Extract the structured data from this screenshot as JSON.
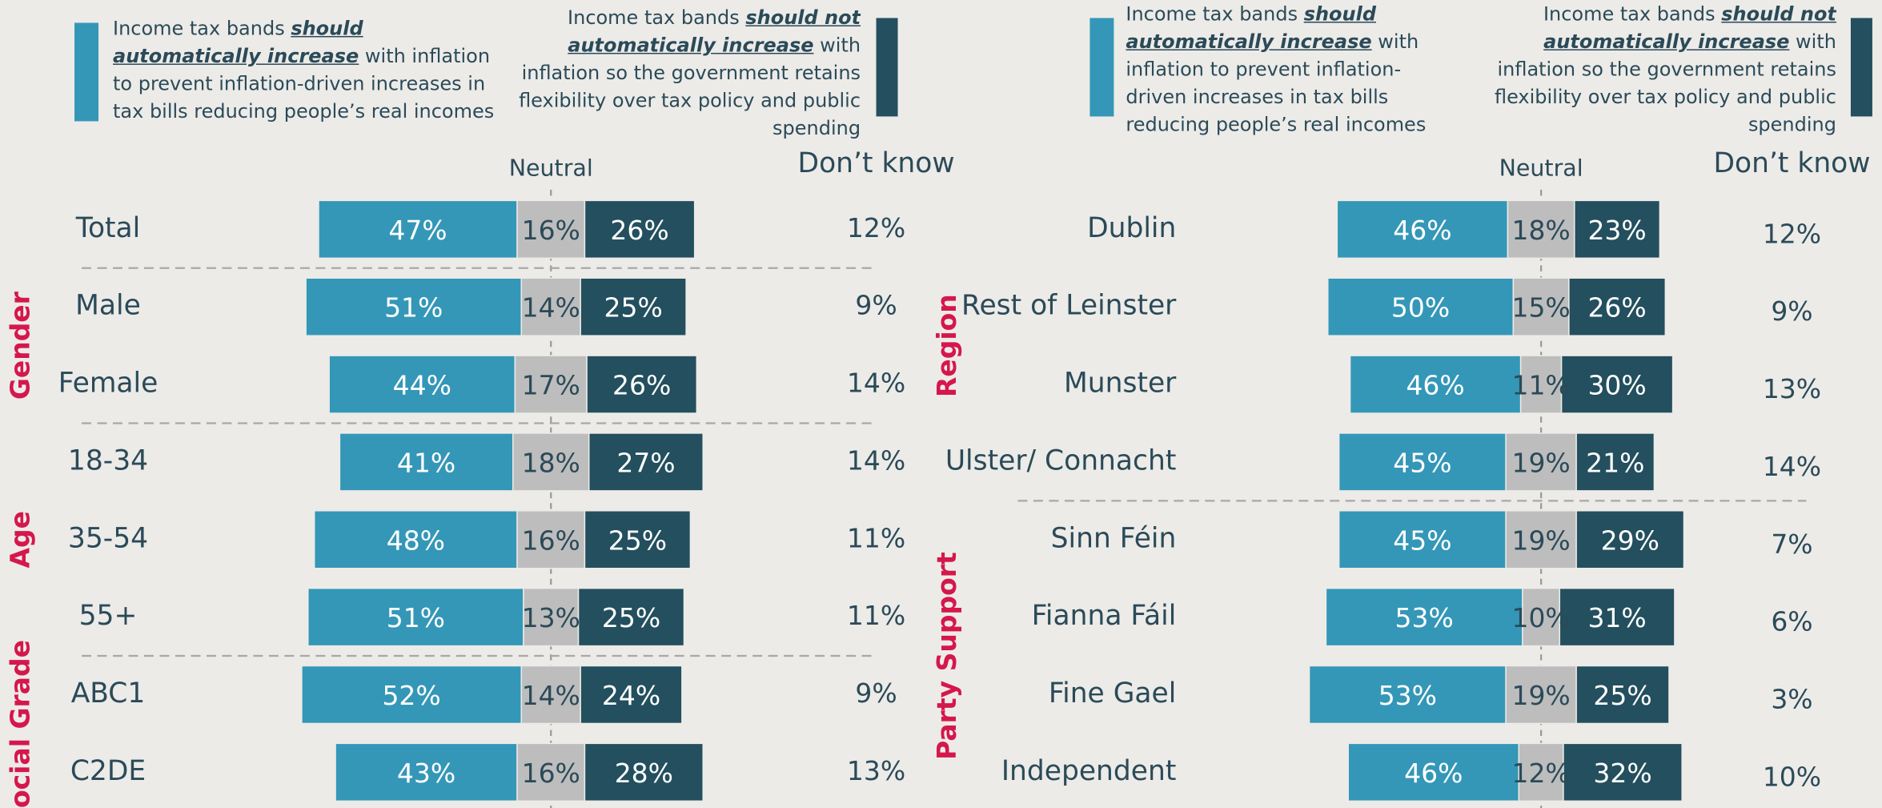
{
  "chart_data": [
    {
      "type": "diverging_bar",
      "categories": [
        "Total",
        "Male",
        "Female",
        "18-34",
        "35-54",
        "55+",
        "ABC1",
        "C2DE"
      ],
      "category_groups": [
        null,
        "Gender",
        "Gender",
        "Age",
        "Age",
        "Age",
        "Social Grade",
        "Social Grade"
      ],
      "group_color": "#d5174b",
      "series": [
        {
          "name": [
            "Income tax bands ",
            "should automatically increase",
            " with inflation to prevent inflation-driven increases in tax bills reducing people’s real incomes"
          ],
          "color": "#3497b7",
          "values": [
            47,
            51,
            44,
            41,
            48,
            51,
            52,
            43
          ],
          "value_labels": [
            "47%",
            "51%",
            "44%",
            "41%",
            "48%",
            "51%",
            "52%",
            "43%"
          ]
        },
        {
          "name": "Neutral",
          "color": "#bdbdbd",
          "values": [
            16,
            14,
            17,
            18,
            16,
            13,
            14,
            16
          ],
          "value_labels": [
            "16%",
            "14%",
            "17%",
            "18%",
            "16%",
            "13%",
            "14%",
            "16%"
          ]
        },
        {
          "name": [
            "Income tax bands ",
            "should not automatically increase",
            " with inflation so the government retains flexibility over tax policy and public spending"
          ],
          "color": "#234f5e",
          "values": [
            26,
            25,
            26,
            27,
            25,
            25,
            24,
            28
          ],
          "value_labels": [
            "26%",
            "25%",
            "26%",
            "27%",
            "25%",
            "25%",
            "24%",
            "28%"
          ]
        },
        {
          "name": "Don’t know",
          "values": [
            12,
            9,
            14,
            14,
            11,
            11,
            9,
            13
          ],
          "value_labels": [
            "12%",
            "9%",
            "14%",
            "14%",
            "11%",
            "11%",
            "9%",
            "13%"
          ]
        }
      ]
    },
    {
      "type": "diverging_bar",
      "categories": [
        "Dublin",
        "Rest of Leinster",
        "Munster",
        "Ulster/ Connacht",
        "Sinn Féin",
        "Fianna Fáil",
        "Fine Gael",
        "Independent"
      ],
      "category_groups": [
        "Region",
        "Region",
        "Region",
        "Region",
        "Party Support",
        "Party Support",
        "Party Support",
        "Party Support"
      ],
      "group_color": "#d5174b",
      "series": [
        {
          "name": [
            "Income tax bands ",
            "should automatically increase",
            " with inflation to prevent inflation-driven increases in tax bills reducing people’s real incomes"
          ],
          "color": "#3497b7",
          "values": [
            46,
            50,
            46,
            45,
            45,
            53,
            53,
            46
          ],
          "value_labels": [
            "46%",
            "50%",
            "46%",
            "45%",
            "45%",
            "53%",
            "53%",
            "46%"
          ]
        },
        {
          "name": "Neutral",
          "color": "#bdbdbd",
          "values": [
            18,
            15,
            11,
            19,
            19,
            10,
            19,
            12
          ],
          "value_labels": [
            "18%",
            "15%",
            "11%",
            "19%",
            "19%",
            "10%",
            "19%",
            "12%"
          ]
        },
        {
          "name": [
            "Income tax bands ",
            "should not automatically increase",
            " with inflation so the government retains flexibility over tax policy and public spending"
          ],
          "color": "#234f5e",
          "values": [
            23,
            26,
            30,
            21,
            29,
            31,
            25,
            32
          ],
          "value_labels": [
            "23%",
            "26%",
            "30%",
            "21%",
            "29%",
            "31%",
            "25%",
            "32%"
          ]
        },
        {
          "name": "Don’t know",
          "values": [
            12,
            9,
            13,
            14,
            7,
            6,
            3,
            10
          ],
          "value_labels": [
            "12%",
            "9%",
            "13%",
            "14%",
            "7%",
            "6%",
            "3%",
            "10%"
          ]
        }
      ]
    }
  ]
}
